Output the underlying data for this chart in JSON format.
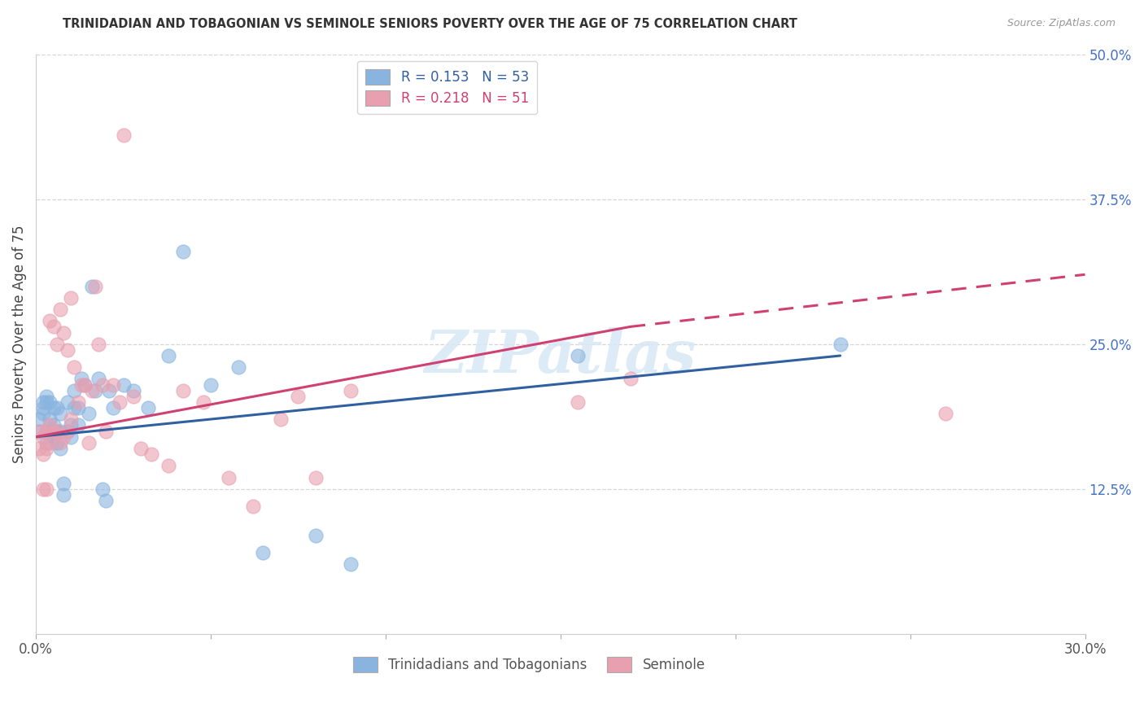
{
  "title": "TRINIDADIAN AND TOBAGONIAN VS SEMINOLE SENIORS POVERTY OVER THE AGE OF 75 CORRELATION CHART",
  "source": "Source: ZipAtlas.com",
  "ylabel": "Seniors Poverty Over the Age of 75",
  "xlim": [
    0.0,
    0.3
  ],
  "ylim": [
    0.0,
    0.5
  ],
  "ytick_right": [
    0.125,
    0.25,
    0.375,
    0.5
  ],
  "ytick_right_labels": [
    "12.5%",
    "25.0%",
    "37.5%",
    "50.0%"
  ],
  "legend_label1": "Trinidadians and Tobagonians",
  "legend_label2": "Seminole",
  "R1": "0.153",
  "N1": "53",
  "R2": "0.218",
  "N2": "51",
  "color_blue": "#8ab4e0",
  "color_pink": "#e8a0b0",
  "line_blue": "#3060a0",
  "line_pink": "#d04070",
  "blue_scatter_x": [
    0.001,
    0.001,
    0.002,
    0.002,
    0.002,
    0.003,
    0.003,
    0.003,
    0.003,
    0.004,
    0.004,
    0.004,
    0.005,
    0.005,
    0.005,
    0.006,
    0.006,
    0.006,
    0.007,
    0.007,
    0.007,
    0.008,
    0.008,
    0.009,
    0.009,
    0.01,
    0.01,
    0.011,
    0.011,
    0.012,
    0.012,
    0.013,
    0.014,
    0.015,
    0.016,
    0.017,
    0.018,
    0.019,
    0.02,
    0.021,
    0.022,
    0.025,
    0.028,
    0.032,
    0.038,
    0.042,
    0.05,
    0.058,
    0.065,
    0.08,
    0.09,
    0.155,
    0.23
  ],
  "blue_scatter_y": [
    0.175,
    0.185,
    0.2,
    0.195,
    0.19,
    0.175,
    0.165,
    0.2,
    0.205,
    0.175,
    0.185,
    0.2,
    0.17,
    0.18,
    0.195,
    0.165,
    0.175,
    0.195,
    0.16,
    0.175,
    0.19,
    0.12,
    0.13,
    0.175,
    0.2,
    0.17,
    0.18,
    0.195,
    0.21,
    0.18,
    0.195,
    0.22,
    0.215,
    0.19,
    0.3,
    0.21,
    0.22,
    0.125,
    0.115,
    0.21,
    0.195,
    0.215,
    0.21,
    0.195,
    0.24,
    0.33,
    0.215,
    0.23,
    0.07,
    0.085,
    0.06,
    0.24,
    0.25
  ],
  "pink_scatter_x": [
    0.001,
    0.001,
    0.002,
    0.002,
    0.002,
    0.003,
    0.003,
    0.003,
    0.004,
    0.004,
    0.004,
    0.005,
    0.005,
    0.006,
    0.006,
    0.007,
    0.007,
    0.008,
    0.008,
    0.009,
    0.009,
    0.01,
    0.01,
    0.011,
    0.012,
    0.013,
    0.014,
    0.015,
    0.016,
    0.017,
    0.018,
    0.019,
    0.02,
    0.022,
    0.024,
    0.025,
    0.028,
    0.03,
    0.033,
    0.038,
    0.042,
    0.048,
    0.055,
    0.062,
    0.07,
    0.075,
    0.08,
    0.09,
    0.155,
    0.17,
    0.26
  ],
  "pink_scatter_y": [
    0.16,
    0.175,
    0.125,
    0.155,
    0.17,
    0.125,
    0.16,
    0.175,
    0.165,
    0.18,
    0.27,
    0.175,
    0.265,
    0.175,
    0.25,
    0.165,
    0.28,
    0.17,
    0.26,
    0.175,
    0.245,
    0.185,
    0.29,
    0.23,
    0.2,
    0.215,
    0.215,
    0.165,
    0.21,
    0.3,
    0.25,
    0.215,
    0.175,
    0.215,
    0.2,
    0.43,
    0.205,
    0.16,
    0.155,
    0.145,
    0.21,
    0.2,
    0.135,
    0.11,
    0.185,
    0.205,
    0.135,
    0.21,
    0.2,
    0.22,
    0.19
  ],
  "background_color": "#ffffff",
  "grid_color": "#cccccc",
  "trendline_blue_x0": 0.0,
  "trendline_blue_y0": 0.17,
  "trendline_blue_x1": 0.23,
  "trendline_blue_y1": 0.24,
  "trendline_pink_solid_x0": 0.0,
  "trendline_pink_solid_y0": 0.17,
  "trendline_pink_solid_x1": 0.17,
  "trendline_pink_solid_y1": 0.265,
  "trendline_pink_dash_x0": 0.17,
  "trendline_pink_dash_y0": 0.265,
  "trendline_pink_dash_x1": 0.3,
  "trendline_pink_dash_y1": 0.31
}
